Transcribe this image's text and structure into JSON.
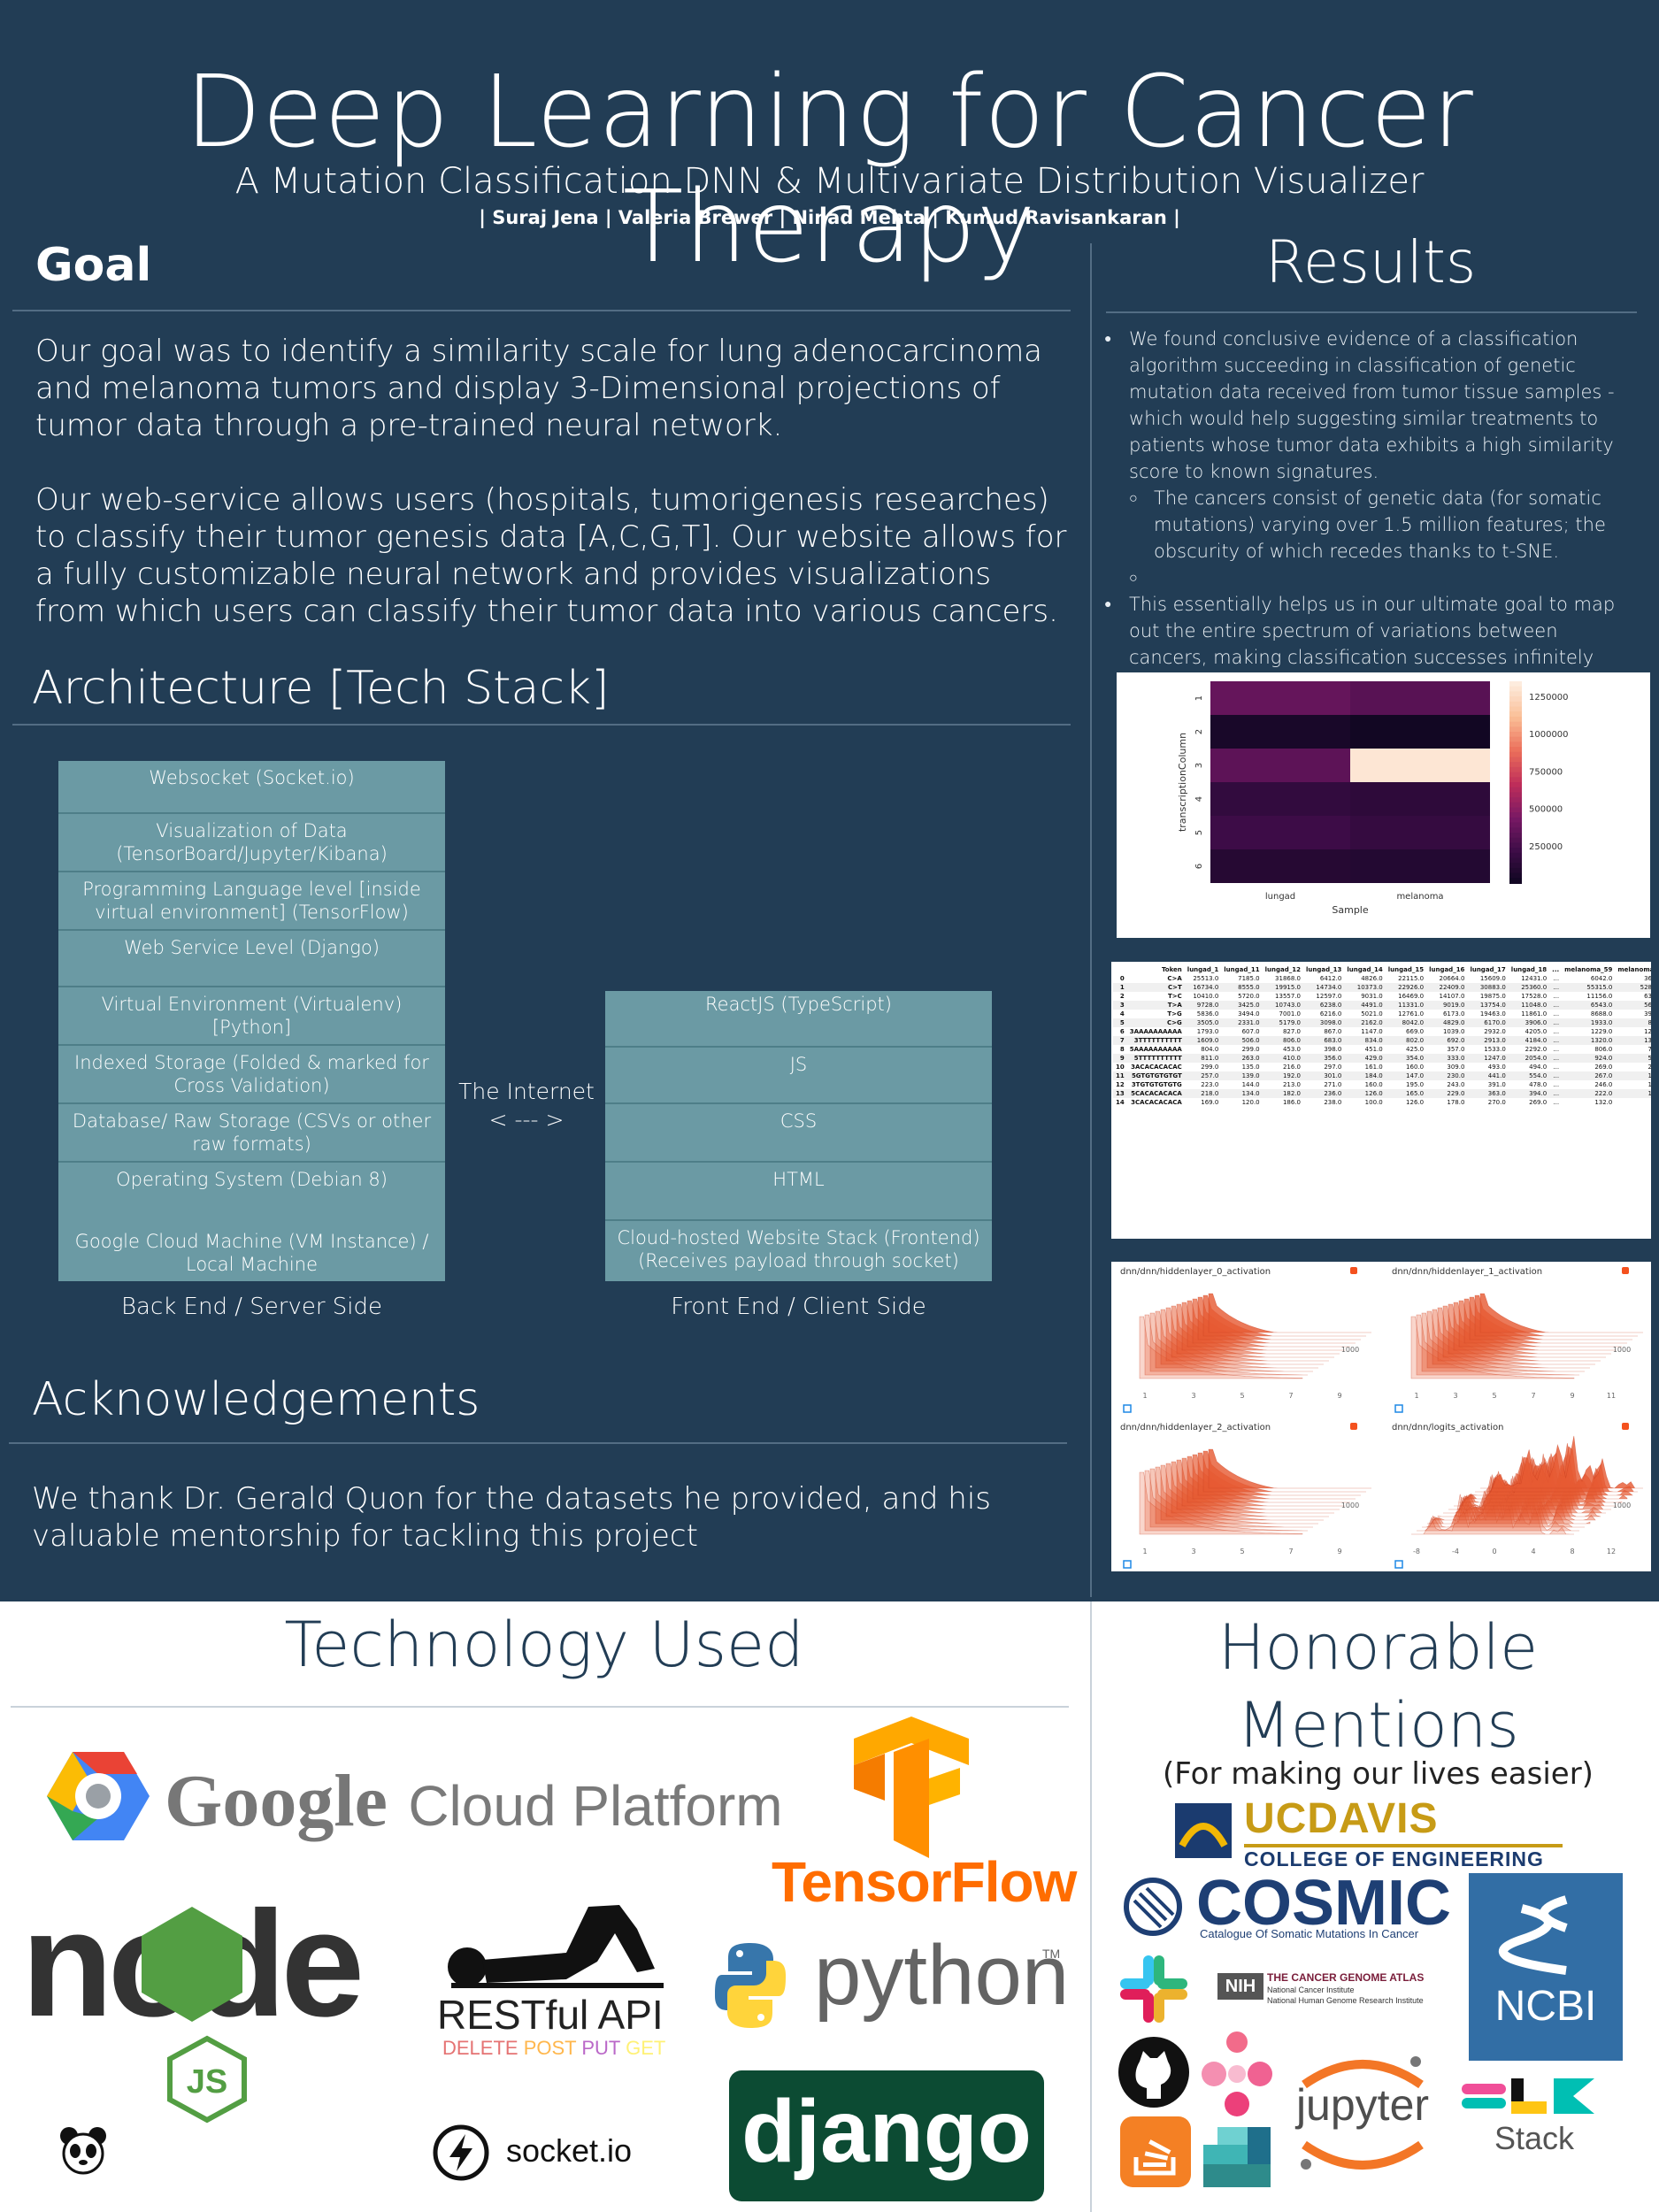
{
  "header": {
    "title": "Deep Learning for Cancer Therapy",
    "subtitle": "A Mutation Classification DNN & Multivariate Distribution Visualizer",
    "authors": "| Suraj Jena | Valeria Brewer | Ninad Mehta | Kumud Ravisankaran |"
  },
  "goal": {
    "heading": "Goal",
    "p1": "Our goal was to identify a similarity scale for lung adenocarcinoma and melanoma tumors and display 3-Dimensional projections of tumor data through a pre-trained neural network.",
    "p2": "Our web-service allows users (hospitals, tumorigenesis researches) to classify their tumor genesis data [A,C,G,T]. Our website allows for a fully customizable neural network and provides visualizations from which users can classify their tumor data into various cancers."
  },
  "architecture": {
    "heading": "Architecture [Tech Stack]",
    "backend": [
      "Websocket (Socket.io)",
      "Visualization of Data (TensorBoard/Jupyter/Kibana)",
      "Programming Language level [inside virtual environment] (TensorFlow)",
      "Web Service Level (Django)",
      "Virtual Environment (Virtualenv) [Python]",
      "Indexed Storage (Folded & marked for Cross Validation)",
      "Database/ Raw Storage (CSVs or other raw formats)",
      "Operating System (Debian 8)",
      "Google Cloud Machine (VM Instance) / Local Machine"
    ],
    "frontend": [
      "ReactJS (TypeScript)",
      "JS",
      "CSS",
      "HTML",
      "Cloud-hosted Website Stack (Frontend) (Receives payload through socket)"
    ],
    "internet_label": "The Internet",
    "internet_arrow": "< --- >",
    "backend_caption": "Back End / Server Side",
    "frontend_caption": "Front End / Client Side"
  },
  "acknowledgements": {
    "heading": "Acknowledgements",
    "text": "We thank Dr. Gerald Quon for the datasets he provided, and his valuable mentorship for tackling this project"
  },
  "results": {
    "heading": "Results",
    "b1": "We found conclusive evidence of a classification algorithm succeeding in classification of genetic mutation data received from tumor tissue samples - which would help suggesting similar treatments to patients whose tumor data exhibits a high similarity score to known signatures.",
    "b1_sub": "The cancers consist of genetic data (for somatic mutations) varying over 1.5 million features; the obscurity of which recedes thanks to t-SNE.",
    "b2": "This essentially helps us in our ultimate goal to map out the entire spectrum of variations between cancers, making classification successes infinitely better as time progresses."
  },
  "chart_data": [
    {
      "type": "heatmap",
      "xlabel": "Sample",
      "ylabel": "transcriptionColumn",
      "x": [
        "lungad",
        "melanoma"
      ],
      "y": [
        "1",
        "2",
        "3",
        "4",
        "5",
        "6"
      ],
      "values": [
        [
          380000,
          330000
        ],
        [
          60000,
          30000
        ],
        [
          350000,
          1320000
        ],
        [
          180000,
          160000
        ],
        [
          230000,
          190000
        ],
        [
          120000,
          110000
        ]
      ],
      "colorbar_ticks": [
        "1250000",
        "1000000",
        "750000",
        "500000",
        "250000"
      ]
    },
    {
      "type": "table",
      "columns": [
        "",
        "Token",
        "lungad_1",
        "lungad_11",
        "lungad_12",
        "lungad_13",
        "lungad_14",
        "lungad_15",
        "lungad_16",
        "lungad_17",
        "lungad_18",
        "...",
        "melanoma_59",
        "melanoma_60",
        "me"
      ],
      "rows": [
        [
          "0",
          "C>A",
          "25513.0",
          "7185.0",
          "31868.0",
          "6412.0",
          "4826.0",
          "22115.0",
          "20664.0",
          "15609.0",
          "12431.0",
          "...",
          "6042.0",
          "3603.0"
        ],
        [
          "1",
          "C>T",
          "16734.0",
          "8555.0",
          "19915.0",
          "14734.0",
          "10373.0",
          "22926.0",
          "22409.0",
          "30883.0",
          "25360.0",
          "...",
          "55315.0",
          "52832.0"
        ],
        [
          "2",
          "T>C",
          "10410.0",
          "5720.0",
          "13557.0",
          "12597.0",
          "9031.0",
          "16469.0",
          "14107.0",
          "19875.0",
          "17528.0",
          "...",
          "11156.0",
          "6379.0"
        ],
        [
          "3",
          "T>A",
          "9728.0",
          "3425.0",
          "10743.0",
          "6238.0",
          "4491.0",
          "11331.0",
          "9019.0",
          "13754.0",
          "11048.0",
          "...",
          "6543.0",
          "5650.0"
        ],
        [
          "4",
          "T>G",
          "5836.0",
          "3494.0",
          "7001.0",
          "6216.0",
          "5021.0",
          "12761.0",
          "6173.0",
          "19463.0",
          "11861.0",
          "...",
          "8688.0",
          "3961.0"
        ],
        [
          "5",
          "C>G",
          "3505.0",
          "2331.0",
          "5179.0",
          "3098.0",
          "2162.0",
          "8042.0",
          "4829.0",
          "6170.0",
          "3906.0",
          "...",
          "1933.0",
          "891.0"
        ],
        [
          "6",
          "3AAAAAAAAAA",
          "1793.0",
          "607.0",
          "827.0",
          "867.0",
          "1147.0",
          "669.0",
          "1039.0",
          "2932.0",
          "4205.0",
          "...",
          "1229.0",
          "1208.0"
        ],
        [
          "7",
          "3TTTTTTTTTT",
          "1609.0",
          "506.0",
          "806.0",
          "683.0",
          "834.0",
          "802.0",
          "692.0",
          "2913.0",
          "4184.0",
          "...",
          "1320.0",
          "1323.0"
        ],
        [
          "8",
          "5AAAAAAAAAA",
          "804.0",
          "299.0",
          "453.0",
          "398.0",
          "451.0",
          "425.0",
          "357.0",
          "1533.0",
          "2292.0",
          "...",
          "806.0",
          "772.0"
        ],
        [
          "9",
          "5TTTTTTTTTT",
          "811.0",
          "263.0",
          "410.0",
          "356.0",
          "429.0",
          "354.0",
          "333.0",
          "1247.0",
          "2054.0",
          "...",
          "924.0",
          "518.0"
        ],
        [
          "10",
          "3ACACACACAC",
          "299.0",
          "135.0",
          "216.0",
          "297.0",
          "161.0",
          "160.0",
          "309.0",
          "493.0",
          "494.0",
          "...",
          "269.0",
          "200.0"
        ],
        [
          "11",
          "5GTGTGTGTGT",
          "257.0",
          "139.0",
          "192.0",
          "301.0",
          "184.0",
          "147.0",
          "230.0",
          "441.0",
          "554.0",
          "...",
          "267.0",
          "158.0"
        ],
        [
          "12",
          "3TGTGTGTGTG",
          "223.0",
          "144.0",
          "213.0",
          "271.0",
          "160.0",
          "195.0",
          "243.0",
          "391.0",
          "478.0",
          "...",
          "246.0",
          "156.0"
        ],
        [
          "13",
          "5CACACACACA",
          "218.0",
          "134.0",
          "182.0",
          "236.0",
          "126.0",
          "165.0",
          "229.0",
          "363.0",
          "394.0",
          "...",
          "222.0",
          "144.0"
        ],
        [
          "14",
          "3CACACACACA",
          "169.0",
          "120.0",
          "186.0",
          "238.0",
          "100.0",
          "126.0",
          "178.0",
          "270.0",
          "269.0",
          "...",
          "132.0",
          "78.0"
        ]
      ]
    },
    {
      "type": "area",
      "panels": [
        {
          "title": "dnn/dnn/hiddenlayer_0_activation",
          "x_ticks": [
            "1",
            "3",
            "5",
            "7",
            "9"
          ],
          "y_tick": "1000"
        },
        {
          "title": "dnn/dnn/hiddenlayer_1_activation",
          "x_ticks": [
            "1",
            "3",
            "5",
            "7",
            "9",
            "11"
          ],
          "y_tick": "1000"
        },
        {
          "title": "dnn/dnn/hiddenlayer_2_activation",
          "x_ticks": [
            "1",
            "3",
            "5",
            "7",
            "9"
          ],
          "y_tick": "1000"
        },
        {
          "title": "dnn/dnn/logits_activation",
          "x_ticks": [
            "-8",
            "-4",
            "0",
            "4",
            "8",
            "12"
          ],
          "y_tick": "1000"
        }
      ]
    }
  ],
  "technology": {
    "heading": "Technology Used",
    "gcp_google": "Google",
    "gcp_rest": "Cloud Platform",
    "tensorflow": "TensorFlow",
    "node": "node",
    "rest_title": "RESTful API",
    "rest_verbs": [
      "DELETE",
      "POST",
      "PUT",
      "GET"
    ],
    "python": "python",
    "python_tm": "TM",
    "socketio": "socket.io",
    "django": "django",
    "colors": {
      "blue": "#4285f4",
      "red": "#ea4335",
      "yellow": "#fbbc05",
      "green": "#34a853",
      "tf_orange": "#ff8f00",
      "node_green": "#539e43",
      "django_green": "#0c4b33"
    }
  },
  "honorable": {
    "heading_line1": "Honorable",
    "heading_line2": "Mentions",
    "subheading": "(For making our lives easier)",
    "ucdavis": "UCDAVIS",
    "ucdavis_sub": "COLLEGE OF ENGINEERING",
    "cosmic": "COSMIC",
    "cosmic_sub": "Catalogue Of Somatic Mutations In Cancer",
    "nih": "NIH",
    "tcga": "THE CANCER GENOME ATLAS",
    "tcga_sub1": "National Cancer Institute",
    "tcga_sub2": "National Human Genome Research Institute",
    "ncbi": "NCBI",
    "jupyter": "jupyter",
    "elk": "Stack"
  }
}
